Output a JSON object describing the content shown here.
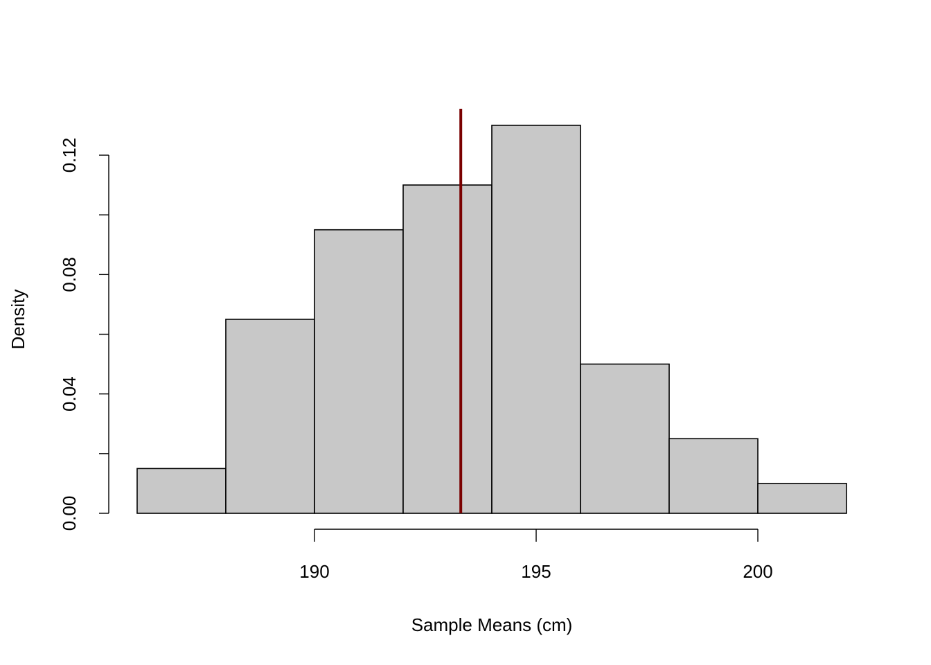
{
  "chart_data": {
    "type": "bar",
    "subtype": "histogram",
    "xlabel": "Sample Means (cm)",
    "ylabel": "Density",
    "bins": [
      {
        "start": 186,
        "end": 188,
        "density": 0.015
      },
      {
        "start": 188,
        "end": 190,
        "density": 0.065
      },
      {
        "start": 190,
        "end": 192,
        "density": 0.095
      },
      {
        "start": 192,
        "end": 194,
        "density": 0.11
      },
      {
        "start": 194,
        "end": 196,
        "density": 0.13
      },
      {
        "start": 196,
        "end": 198,
        "density": 0.05
      },
      {
        "start": 198,
        "end": 200,
        "density": 0.025
      },
      {
        "start": 200,
        "end": 202,
        "density": 0.01
      }
    ],
    "mean_line": {
      "x": 193.3,
      "color": "#7a0000"
    },
    "x_ticks": [
      190,
      195,
      200
    ],
    "x_tick_labels": [
      "190",
      "195",
      "200"
    ],
    "y_ticks": [
      0.0,
      0.02,
      0.04,
      0.06,
      0.08,
      0.1,
      0.12
    ],
    "y_tick_labels": [
      "0.00",
      "",
      "0.04",
      "",
      "0.08",
      "",
      "0.12"
    ],
    "xlim": [
      185.36,
      202.64
    ],
    "ylim": [
      0,
      0.13
    ],
    "bar_fill": "#c8c8c8",
    "grid": false,
    "legend": "none"
  }
}
